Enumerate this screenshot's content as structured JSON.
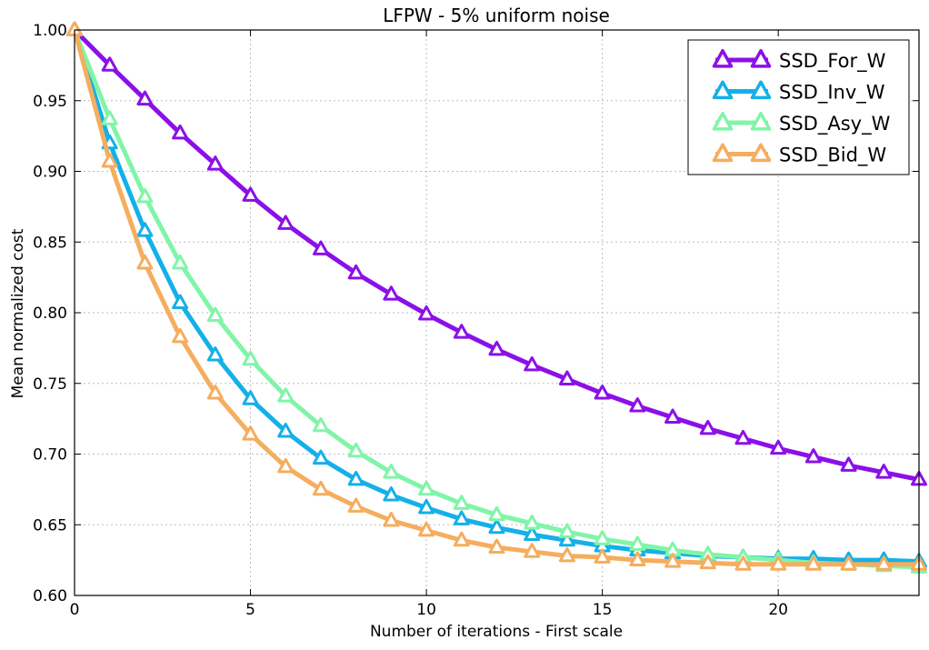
{
  "chart_data": {
    "type": "line",
    "title": "LFPW - 5% uniform noise",
    "xlabel": "Number of iterations - First scale",
    "ylabel": "Mean normalized cost",
    "xlim": [
      0,
      24
    ],
    "ylim": [
      0.6,
      1.0
    ],
    "xticks": [
      0,
      5,
      10,
      15,
      20
    ],
    "xtick_labels": [
      "0",
      "5",
      "10",
      "15",
      "20"
    ],
    "yticks": [
      0.6,
      0.65,
      0.7,
      0.75,
      0.8,
      0.85,
      0.9,
      0.95,
      1.0
    ],
    "ytick_labels": [
      "0.60",
      "0.65",
      "0.70",
      "0.75",
      "0.80",
      "0.85",
      "0.90",
      "0.95",
      "1.00"
    ],
    "grid": true,
    "legend_position": "top-right",
    "marker": "triangle",
    "x": [
      0,
      1,
      2,
      3,
      4,
      5,
      6,
      7,
      8,
      9,
      10,
      11,
      12,
      13,
      14,
      15,
      16,
      17,
      18,
      19,
      20,
      21,
      22,
      23,
      24
    ],
    "series": [
      {
        "name": "SSD_For_W",
        "color": "#8b10e8",
        "values": [
          1.0,
          0.975,
          0.951,
          0.927,
          0.905,
          0.883,
          0.863,
          0.845,
          0.828,
          0.813,
          0.799,
          0.786,
          0.774,
          0.763,
          0.753,
          0.743,
          0.734,
          0.726,
          0.718,
          0.711,
          0.704,
          0.698,
          0.692,
          0.687,
          0.682
        ]
      },
      {
        "name": "SSD_Inv_W",
        "color": "#14b0e8",
        "values": [
          1.0,
          0.92,
          0.858,
          0.807,
          0.77,
          0.739,
          0.716,
          0.697,
          0.682,
          0.671,
          0.662,
          0.654,
          0.648,
          0.643,
          0.639,
          0.635,
          0.632,
          0.63,
          0.628,
          0.627,
          0.626,
          0.626,
          0.625,
          0.625,
          0.624
        ]
      },
      {
        "name": "SSD_Asy_W",
        "color": "#80f5a8",
        "values": [
          1.0,
          0.937,
          0.882,
          0.835,
          0.798,
          0.767,
          0.741,
          0.72,
          0.702,
          0.687,
          0.675,
          0.665,
          0.657,
          0.651,
          0.645,
          0.64,
          0.636,
          0.632,
          0.629,
          0.627,
          0.625,
          0.623,
          0.622,
          0.621,
          0.62
        ]
      },
      {
        "name": "SSD_Bid_W",
        "color": "#f5ad5e",
        "values": [
          1.0,
          0.907,
          0.835,
          0.783,
          0.743,
          0.714,
          0.691,
          0.675,
          0.663,
          0.653,
          0.646,
          0.639,
          0.634,
          0.631,
          0.628,
          0.627,
          0.625,
          0.624,
          0.623,
          0.622,
          0.622,
          0.622,
          0.622,
          0.622,
          0.622
        ]
      }
    ]
  }
}
